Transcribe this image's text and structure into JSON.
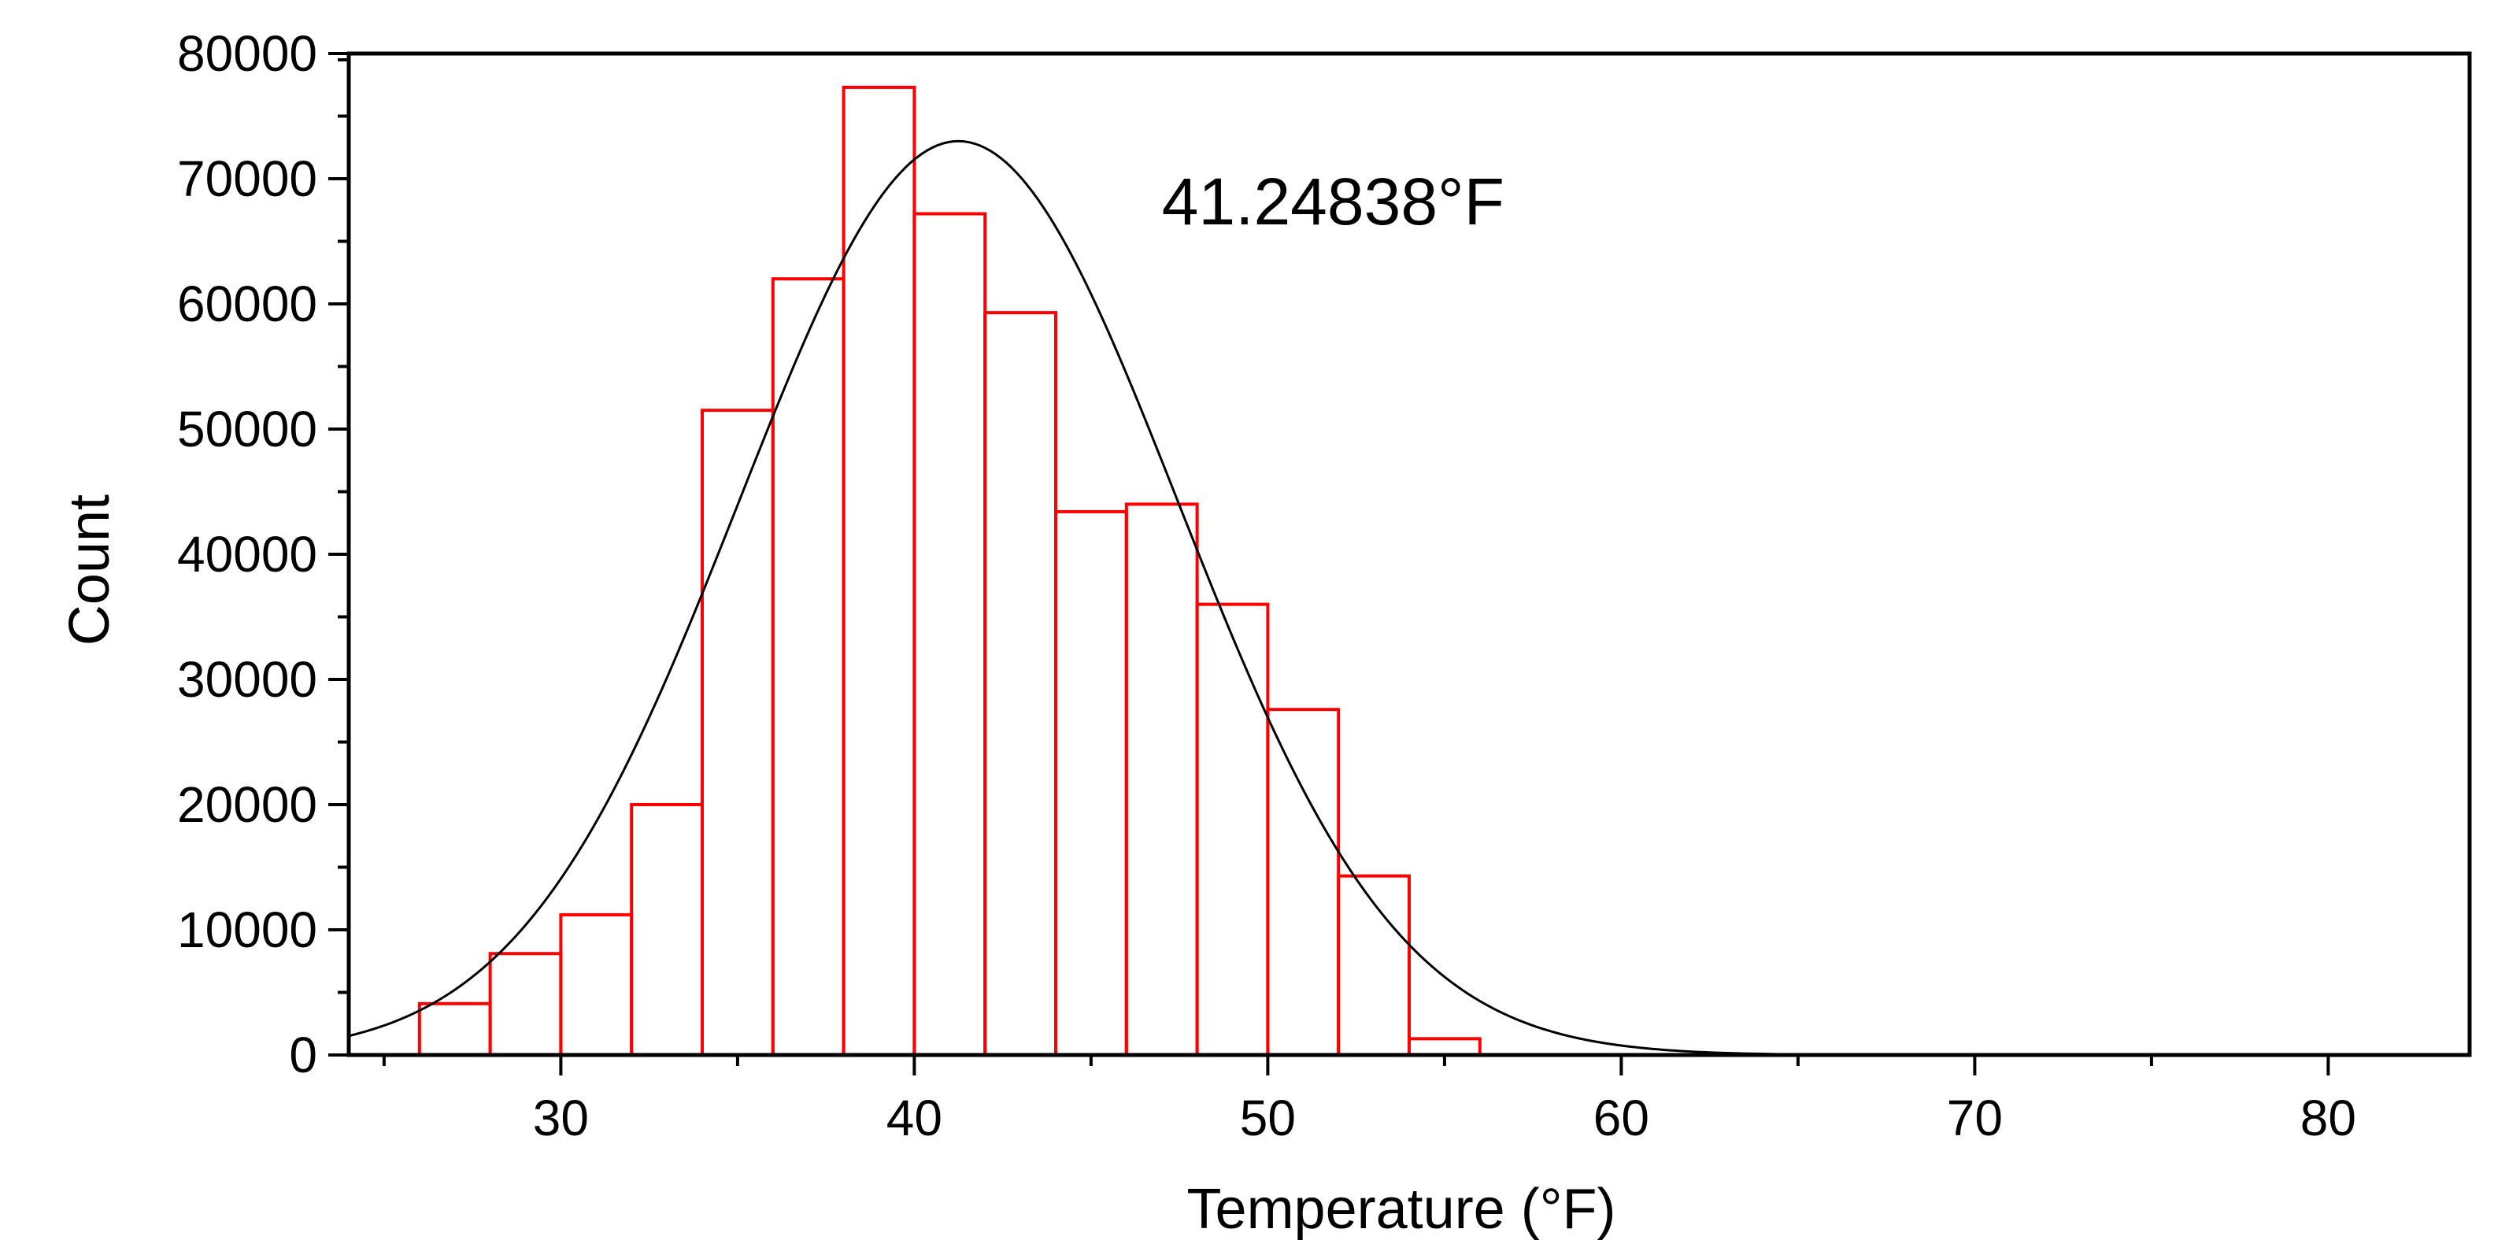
{
  "chart_data": {
    "type": "bar",
    "xlabel": "Temperature (°F)",
    "ylabel": "Count",
    "annotation": "41.24838°F",
    "xlim": [
      24,
      84
    ],
    "ylim": [
      0,
      80000
    ],
    "x_ticks": [
      30,
      40,
      50,
      60,
      70,
      80
    ],
    "y_ticks": [
      0,
      10000,
      20000,
      30000,
      40000,
      50000,
      60000,
      70000,
      80000
    ],
    "bin_width": 2,
    "bins": [
      {
        "start": 26,
        "end": 28,
        "count": 4100
      },
      {
        "start": 28,
        "end": 30,
        "count": 8100
      },
      {
        "start": 30,
        "end": 32,
        "count": 11200
      },
      {
        "start": 32,
        "end": 34,
        "count": 20000
      },
      {
        "start": 34,
        "end": 36,
        "count": 51500
      },
      {
        "start": 36,
        "end": 38,
        "count": 62000
      },
      {
        "start": 38,
        "end": 40,
        "count": 77300
      },
      {
        "start": 40,
        "end": 42,
        "count": 67200
      },
      {
        "start": 42,
        "end": 44,
        "count": 59300
      },
      {
        "start": 44,
        "end": 46,
        "count": 43400
      },
      {
        "start": 46,
        "end": 48,
        "count": 44000
      },
      {
        "start": 48,
        "end": 50,
        "count": 36000
      },
      {
        "start": 50,
        "end": 52,
        "count": 27600
      },
      {
        "start": 52,
        "end": 54,
        "count": 14300
      },
      {
        "start": 54,
        "end": 56,
        "count": 1300
      }
    ],
    "fit_curve": {
      "type": "normal",
      "mean": 41.24838,
      "sigma": 6.2,
      "peak": 73000
    },
    "bar_color": "#ff0000",
    "curve_color": "#000000",
    "grid": false
  }
}
